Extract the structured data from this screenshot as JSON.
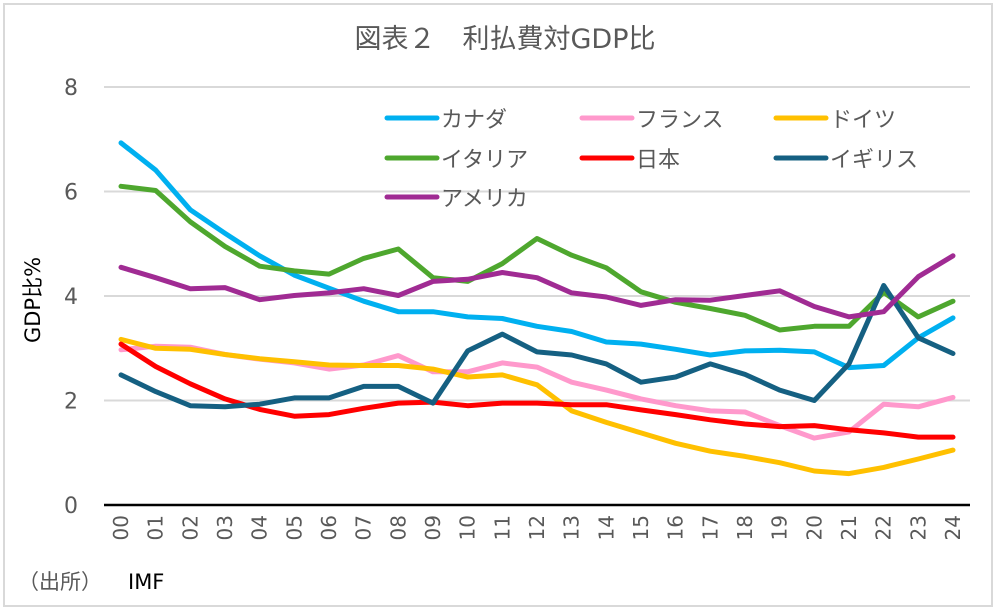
{
  "chart_data": {
    "type": "line",
    "title": "図表２　利払費対GDP比",
    "xlabel": "",
    "ylabel": "GDP比%",
    "ylim": [
      0,
      8
    ],
    "yticks": [
      "0",
      "2",
      "4",
      "6",
      "8"
    ],
    "grid": true,
    "legend_position": "top-right",
    "categories": [
      "00",
      "01",
      "02",
      "03",
      "04",
      "05",
      "06",
      "07",
      "08",
      "09",
      "10",
      "11",
      "12",
      "13",
      "14",
      "15",
      "16",
      "17",
      "18",
      "19",
      "20",
      "21",
      "22",
      "23",
      "24"
    ],
    "series": [
      {
        "name": "カナダ",
        "color": "#00b0f0",
        "values": [
          6.93,
          6.41,
          5.65,
          5.2,
          4.77,
          4.4,
          4.15,
          3.9,
          3.7,
          3.7,
          3.6,
          3.57,
          3.42,
          3.32,
          3.12,
          3.08,
          2.98,
          2.87,
          2.95,
          2.96,
          2.93,
          2.63,
          2.67,
          3.2,
          3.58
        ]
      },
      {
        "name": "フランス",
        "color": "#ff99cc",
        "values": [
          2.97,
          3.04,
          3.02,
          2.88,
          2.79,
          2.72,
          2.6,
          2.68,
          2.86,
          2.55,
          2.55,
          2.72,
          2.64,
          2.35,
          2.2,
          2.03,
          1.9,
          1.8,
          1.78,
          1.52,
          1.28,
          1.4,
          1.93,
          1.88,
          2.06
        ]
      },
      {
        "name": "ドイツ",
        "color": "#ffc000",
        "values": [
          3.17,
          3.0,
          2.98,
          2.88,
          2.8,
          2.74,
          2.68,
          2.67,
          2.67,
          2.6,
          2.45,
          2.49,
          2.3,
          1.8,
          1.58,
          1.38,
          1.18,
          1.03,
          0.93,
          0.81,
          0.65,
          0.6,
          0.72,
          0.88,
          1.05
        ]
      },
      {
        "name": "イタリア",
        "color": "#4ea72e",
        "values": [
          6.1,
          6.02,
          5.42,
          4.95,
          4.57,
          4.48,
          4.42,
          4.72,
          4.9,
          4.35,
          4.28,
          4.62,
          5.1,
          4.78,
          4.54,
          4.08,
          3.88,
          3.76,
          3.63,
          3.35,
          3.42,
          3.42,
          4.07,
          3.6,
          3.9
        ]
      },
      {
        "name": "日本",
        "color": "#ff0000",
        "values": [
          3.08,
          2.65,
          2.32,
          2.03,
          1.83,
          1.7,
          1.73,
          1.85,
          1.95,
          1.97,
          1.9,
          1.95,
          1.95,
          1.92,
          1.92,
          1.82,
          1.73,
          1.63,
          1.55,
          1.5,
          1.52,
          1.44,
          1.38,
          1.3,
          1.3
        ]
      },
      {
        "name": "イギリス",
        "color": "#156082",
        "values": [
          2.49,
          2.17,
          1.9,
          1.88,
          1.93,
          2.05,
          2.05,
          2.27,
          2.27,
          1.95,
          2.95,
          3.27,
          2.93,
          2.87,
          2.7,
          2.35,
          2.45,
          2.7,
          2.5,
          2.2,
          2.0,
          2.7,
          4.2,
          3.2,
          2.9
        ]
      },
      {
        "name": "アメリカ",
        "color": "#a02b93",
        "values": [
          4.55,
          4.35,
          4.14,
          4.16,
          3.93,
          4.01,
          4.06,
          4.14,
          4.01,
          4.28,
          4.32,
          4.45,
          4.35,
          4.06,
          3.98,
          3.82,
          3.93,
          3.92,
          4.01,
          4.1,
          3.8,
          3.6,
          3.7,
          4.37,
          4.77
        ]
      }
    ]
  },
  "source": {
    "prefix": "（出所）",
    "name": "IMF"
  }
}
